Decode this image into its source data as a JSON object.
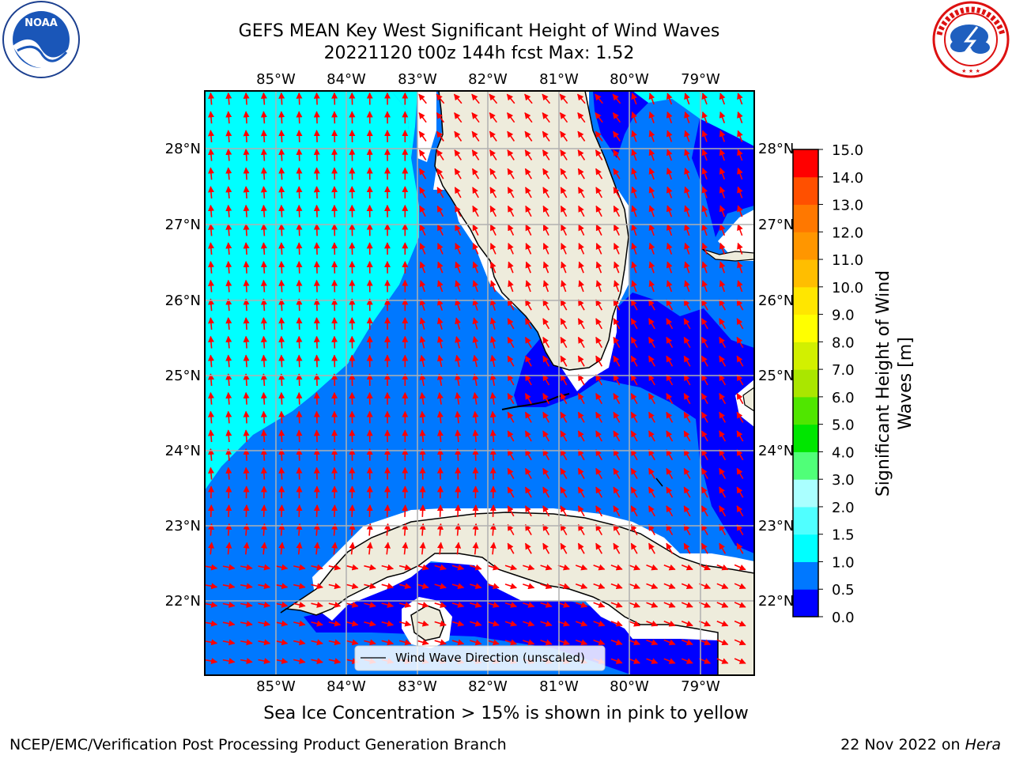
{
  "title": {
    "line1": "GEFS MEAN Key West Significant Height of Wind Waves",
    "line2": "20221120 t00z 144h fcst   Max: 1.52"
  },
  "map": {
    "lon_labels": [
      "85°W",
      "84°W",
      "83°W",
      "82°W",
      "81°W",
      "80°W",
      "79°W"
    ],
    "lat_labels": [
      "28°N",
      "27°N",
      "26°N",
      "25°N",
      "24°N",
      "23°N",
      "22°N"
    ],
    "lon_range": [
      -86.0,
      -78.3
    ],
    "lat_range": [
      21.1,
      28.8
    ],
    "land_color": "#eeecdc",
    "arrow_color": "#ff0000"
  },
  "legend": {
    "label": "Wind Wave Direction (unscaled)"
  },
  "colorbar": {
    "title": "Significant Height of Wind Waves [m]",
    "title_line1": "Significant Height of Wind",
    "title_line2": "Waves [m]",
    "tick_labels": [
      "0.0",
      "0.5",
      "1.0",
      "1.5",
      "2.0",
      "3.0",
      "4.0",
      "5.0",
      "6.0",
      "7.0",
      "8.0",
      "9.0",
      "10.0",
      "11.0",
      "12.0",
      "13.0",
      "14.0",
      "15.0"
    ],
    "colors": [
      "#0000ff",
      "#0078ff",
      "#00ffff",
      "#50ffff",
      "#aaffff",
      "#50ff78",
      "#00e600",
      "#50e600",
      "#aae600",
      "#d2f000",
      "#ffff00",
      "#ffe600",
      "#ffbe00",
      "#ff9600",
      "#ff7800",
      "#ff5000",
      "#ff0000"
    ]
  },
  "caption": "Sea Ice Concentration > 15% is shown in pink to yellow",
  "footer": {
    "left": "NCEP/EMC/Verification Post Processing Product Generation Branch",
    "date": "22 Nov 2022 on ",
    "machine": "Hera"
  },
  "logos": {
    "noaa": "NOAA",
    "nws": "NATIONAL WEATHER SERVICE"
  }
}
